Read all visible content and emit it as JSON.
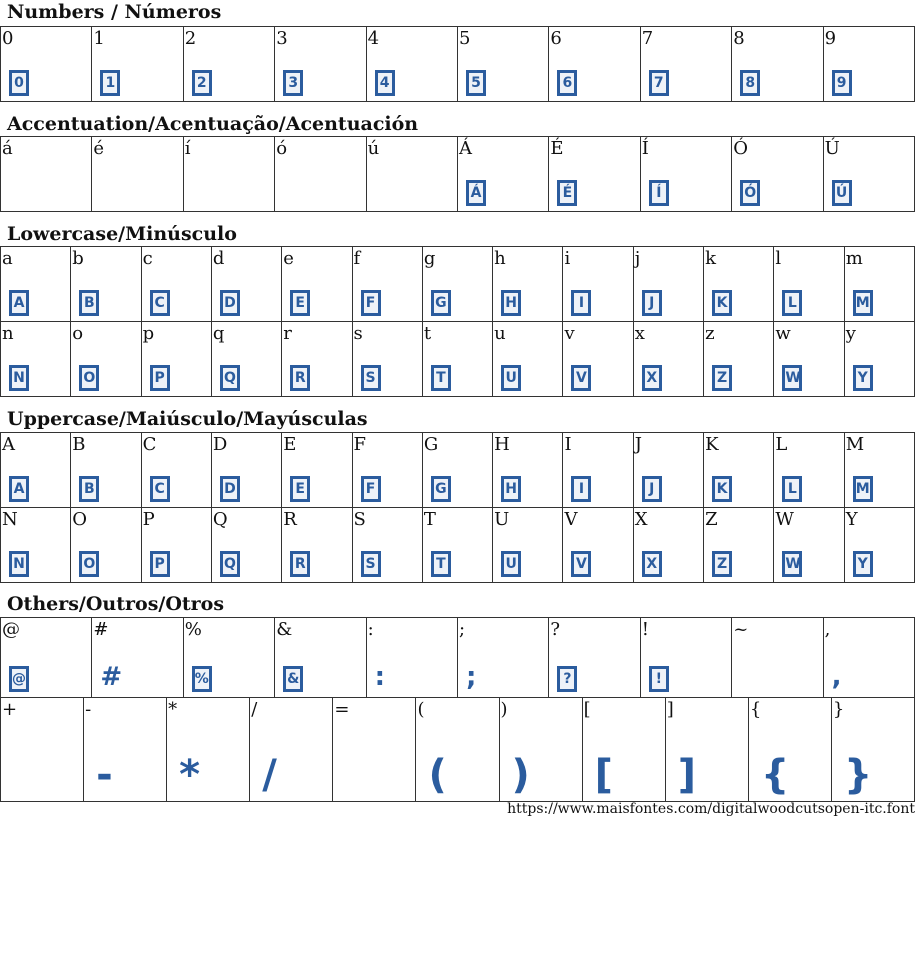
{
  "sections": [
    {
      "title": "Numbers / Números",
      "cols": 10,
      "rows": [
        [
          "0",
          "1",
          "2",
          "3",
          "4",
          "5",
          "6",
          "7",
          "8",
          "9"
        ]
      ],
      "glyphs": [
        [
          "0",
          "1",
          "2",
          "3",
          "4",
          "5",
          "6",
          "7",
          "8",
          "9"
        ]
      ]
    },
    {
      "title": "Accentuation/Acentuação/Acentuación",
      "cols": 10,
      "rows": [
        [
          "á",
          "é",
          "í",
          "ó",
          "ú",
          "Á",
          "É",
          "Í",
          "Ó",
          "Ú"
        ]
      ],
      "glyphs": [
        [
          "",
          "",
          "",
          "",
          "",
          "Á",
          "É",
          "Í",
          "Ó",
          "Ú"
        ]
      ]
    },
    {
      "title": "Lowercase/Minúsculo",
      "cols": 13,
      "rows": [
        [
          "a",
          "b",
          "c",
          "d",
          "e",
          "f",
          "g",
          "h",
          "i",
          "j",
          "k",
          "l",
          "m"
        ],
        [
          "n",
          "o",
          "p",
          "q",
          "r",
          "s",
          "t",
          "u",
          "v",
          "x",
          "z",
          "w",
          "y"
        ]
      ],
      "glyphs": [
        [
          "A",
          "B",
          "C",
          "D",
          "E",
          "F",
          "G",
          "H",
          "I",
          "J",
          "K",
          "L",
          "M"
        ],
        [
          "N",
          "O",
          "P",
          "Q",
          "R",
          "S",
          "T",
          "U",
          "V",
          "X",
          "Z",
          "W",
          "Y"
        ]
      ]
    },
    {
      "title": "Uppercase/Maiúsculo/Mayúsculas",
      "cols": 13,
      "rows": [
        [
          "A",
          "B",
          "C",
          "D",
          "E",
          "F",
          "G",
          "H",
          "I",
          "J",
          "K",
          "L",
          "M"
        ],
        [
          "N",
          "O",
          "P",
          "Q",
          "R",
          "S",
          "T",
          "U",
          "V",
          "X",
          "Z",
          "W",
          "Y"
        ]
      ],
      "glyphs": [
        [
          "A",
          "B",
          "C",
          "D",
          "E",
          "F",
          "G",
          "H",
          "I",
          "J",
          "K",
          "L",
          "M"
        ],
        [
          "N",
          "O",
          "P",
          "Q",
          "R",
          "S",
          "T",
          "U",
          "V",
          "X",
          "Z",
          "W",
          "Y"
        ]
      ]
    },
    {
      "title": "Others/Outros/Otros",
      "cols": 10,
      "rows": [
        [
          "@",
          "#",
          "%",
          "&",
          ":",
          ";",
          "?",
          "!",
          "~",
          ","
        ]
      ],
      "glyphs": [
        [
          "@",
          "#",
          "%",
          "&",
          ":",
          ";",
          "?",
          "!",
          "",
          ","
        ]
      ],
      "boxed": [
        "@",
        "%",
        "&",
        "?",
        "!"
      ]
    },
    {
      "title": "",
      "cols": 11,
      "rows": [
        [
          "+",
          "-",
          "*",
          "/",
          "=",
          "(",
          ")",
          "[",
          "]",
          "{",
          "}"
        ]
      ],
      "glyphs": [
        [
          "",
          "-",
          "*",
          "/",
          "",
          "(",
          ")",
          "[",
          "]",
          "{",
          "}"
        ]
      ],
      "large": true
    }
  ],
  "footer": "https://www.maisfontes.com/digitalwoodcutsopen-itc.font",
  "colors": {
    "glyph": "#2b5c9e",
    "border": "#333333"
  }
}
